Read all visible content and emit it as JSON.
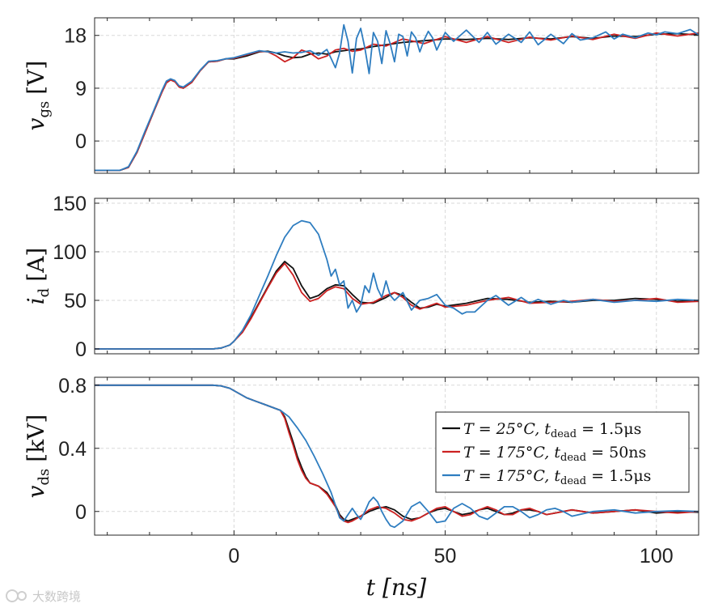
{
  "chart_data": [
    {
      "type": "line",
      "id": "vgs",
      "ylabel_var": "v",
      "ylabel_sub": "gs",
      "ylabel_unit": "[V]",
      "xlim": [
        -33,
        110
      ],
      "ylim": [
        -5.5,
        21
      ],
      "yticks": [
        0,
        9,
        18
      ],
      "ytick_labels": [
        "0",
        "9",
        "18"
      ],
      "series": [
        {
          "name": "T = 25°C, t_dead = 1.5μs",
          "color": "#111111",
          "x": [
            -33,
            -27,
            -25,
            -23,
            -21,
            -19,
            -17,
            -16,
            -15,
            -14,
            -13,
            -12,
            -10,
            -8,
            -6,
            -4,
            -2,
            0,
            3,
            6,
            8,
            10,
            12,
            14,
            16,
            18,
            20,
            22,
            24,
            26,
            28,
            30,
            33,
            36,
            40,
            45,
            50,
            55,
            60,
            65,
            70,
            75,
            80,
            85,
            90,
            95,
            100,
            105,
            110
          ],
          "y": [
            -5,
            -5,
            -4.5,
            -2,
            1.5,
            5,
            8.5,
            10,
            10.5,
            10.2,
            9.3,
            9,
            10,
            12,
            13.5,
            13.6,
            14,
            14,
            14.5,
            15.2,
            15.3,
            15,
            14.5,
            14.2,
            14.3,
            14.8,
            15,
            14.8,
            15.2,
            15.4,
            15.6,
            15.7,
            16.1,
            16.4,
            16.8,
            17.1,
            17.4,
            17.3,
            17.5,
            17.3,
            17.6,
            17.4,
            17.8,
            17.5,
            17.9,
            17.8,
            18.2,
            18.3,
            18.1
          ]
        },
        {
          "name": "T = 175°C, t_dead = 50ns",
          "color": "#cc2222",
          "x": [
            -33,
            -27,
            -25,
            -23,
            -21,
            -19,
            -17,
            -16,
            -15,
            -14,
            -13,
            -12,
            -10,
            -8,
            -6,
            -4,
            -2,
            0,
            3,
            6,
            8,
            10,
            12,
            14,
            16,
            18,
            20,
            22,
            24,
            26,
            28,
            30,
            33,
            36,
            40,
            45,
            50,
            55,
            60,
            65,
            70,
            75,
            80,
            85,
            90,
            95,
            100,
            105,
            110
          ],
          "y": [
            -5,
            -5,
            -4.5,
            -2,
            1.5,
            5,
            8.4,
            9.9,
            10.4,
            10.1,
            9.2,
            9,
            10,
            12,
            13.5,
            13.6,
            14,
            14.1,
            14.7,
            15.3,
            15.2,
            14.5,
            13.5,
            14.2,
            15.5,
            15,
            14,
            14.5,
            15.5,
            15.8,
            15.3,
            15.5,
            16.5,
            16.2,
            17.4,
            16.6,
            17.8,
            16.8,
            17.8,
            16.8,
            17.7,
            17.2,
            17.9,
            17.3,
            18.2,
            17.5,
            18.4,
            17.9,
            18.4
          ]
        },
        {
          "name": "T = 175°C, t_dead = 1.5μs",
          "color": "#2e7dc0",
          "x": [
            -33,
            -27,
            -25,
            -23,
            -21,
            -19,
            -17,
            -16,
            -15,
            -14,
            -13,
            -12,
            -10,
            -8,
            -6,
            -4,
            -2,
            0,
            3,
            6,
            8,
            10,
            12,
            14,
            16,
            18,
            20,
            22,
            24,
            25,
            26,
            27,
            28,
            29,
            30,
            31,
            32,
            33,
            34,
            35,
            36,
            37,
            38,
            39,
            40,
            41,
            42,
            43,
            44,
            45,
            46,
            47,
            48,
            50,
            52,
            55,
            58,
            60,
            62,
            65,
            68,
            70,
            72,
            75,
            78,
            80,
            82,
            85,
            88,
            90,
            92,
            95,
            98,
            100,
            102,
            105,
            108,
            110
          ],
          "y": [
            -5,
            -5,
            -4.4,
            -1.8,
            1.8,
            5.2,
            8.7,
            10.2,
            10.6,
            10.3,
            9.4,
            9.2,
            10.2,
            12.1,
            13.6,
            13.7,
            14,
            14.2,
            14.8,
            15.4,
            15.2,
            15,
            15.2,
            15,
            15.1,
            15.4,
            14.6,
            15.6,
            12.5,
            15,
            19.8,
            17,
            11.6,
            17.5,
            19.2,
            15.8,
            11.5,
            18.5,
            17,
            13.2,
            18.8,
            16.5,
            13.5,
            18.2,
            17.8,
            14.5,
            18.6,
            17.6,
            15.2,
            17.2,
            18.7,
            17.6,
            15.5,
            18.5,
            17,
            18.9,
            16.8,
            18.5,
            16.5,
            18.2,
            16.8,
            18.6,
            16.4,
            18.2,
            16.6,
            18.3,
            17.2,
            17.6,
            18.6,
            17.4,
            18.2,
            17.6,
            18.4,
            18.1,
            18.6,
            18.3,
            19,
            18.1
          ]
        }
      ]
    },
    {
      "type": "line",
      "id": "id",
      "ylabel_var": "i",
      "ylabel_sub": "d",
      "ylabel_unit": "[A]",
      "xlim": [
        -33,
        110
      ],
      "ylim": [
        -5,
        155
      ],
      "yticks": [
        0,
        50,
        100,
        150
      ],
      "ytick_labels": [
        "0",
        "50",
        "100",
        "150"
      ],
      "series": [
        {
          "name": "T = 25°C, t_dead = 1.5μs",
          "color": "#111111",
          "x": [
            -33,
            -5,
            -3,
            -1,
            0,
            2,
            4,
            6,
            8,
            10,
            12,
            14,
            16,
            18,
            20,
            22,
            24,
            26,
            28,
            30,
            33,
            36,
            38,
            40,
            42,
            44,
            46,
            48,
            50,
            55,
            60,
            65,
            70,
            75,
            80,
            85,
            90,
            95,
            100,
            105,
            110
          ],
          "y": [
            0,
            0,
            1,
            4,
            8,
            18,
            32,
            48,
            64,
            80,
            90,
            83,
            65,
            52,
            55,
            62,
            66,
            65,
            56,
            48,
            47,
            53,
            58,
            55,
            48,
            42,
            43,
            46,
            44,
            47,
            52,
            51,
            48,
            49,
            48,
            50,
            50,
            52,
            51,
            49,
            50
          ]
        },
        {
          "name": "T = 175°C, t_dead = 50ns",
          "color": "#cc2222",
          "x": [
            -33,
            -5,
            -3,
            -1,
            0,
            2,
            4,
            6,
            8,
            10,
            12,
            14,
            16,
            18,
            20,
            22,
            24,
            26,
            28,
            30,
            33,
            36,
            38,
            40,
            42,
            44,
            46,
            48,
            50,
            55,
            60,
            65,
            70,
            75,
            80,
            85,
            90,
            95,
            100,
            105,
            110
          ],
          "y": [
            0,
            0,
            1,
            4,
            8,
            17,
            31,
            47,
            63,
            78,
            88,
            76,
            58,
            49,
            52,
            60,
            64,
            62,
            52,
            46,
            48,
            55,
            58,
            53,
            45,
            41,
            44,
            47,
            43,
            45,
            50,
            53,
            47,
            48,
            49,
            51,
            49,
            50,
            52,
            48,
            49
          ]
        },
        {
          "name": "T = 175°C, t_dead = 1.5μs",
          "color": "#2e7dc0",
          "x": [
            -33,
            -5,
            -3,
            -1,
            0,
            2,
            4,
            6,
            8,
            10,
            12,
            14,
            16,
            18,
            20,
            22,
            23,
            24,
            25,
            26,
            27,
            28,
            29,
            30,
            31,
            32,
            33,
            34,
            35,
            36,
            37,
            38,
            40,
            42,
            44,
            46,
            48,
            50,
            52,
            54,
            55,
            57,
            60,
            62,
            65,
            68,
            70,
            72,
            75,
            78,
            80,
            85,
            90,
            95,
            100,
            105,
            110
          ],
          "y": [
            0,
            0,
            1,
            4,
            8,
            19,
            35,
            55,
            75,
            96,
            115,
            127,
            132,
            130,
            118,
            92,
            75,
            82,
            66,
            70,
            42,
            50,
            38,
            45,
            65,
            58,
            78,
            62,
            53,
            70,
            55,
            50,
            58,
            40,
            50,
            52,
            56,
            45,
            42,
            36,
            38,
            38,
            50,
            55,
            45,
            53,
            47,
            51,
            46,
            50,
            48,
            51,
            48,
            50,
            49,
            51,
            50
          ]
        }
      ]
    },
    {
      "type": "line",
      "id": "vds",
      "ylabel_var": "v",
      "ylabel_sub": "ds",
      "ylabel_unit": "[kV]",
      "xlabel": "t [ns]",
      "xlim": [
        -33,
        110
      ],
      "ylim": [
        -0.15,
        0.85
      ],
      "yticks": [
        0,
        0.4,
        0.8
      ],
      "ytick_labels": [
        "0",
        "0.4",
        "0.8"
      ],
      "xticks": [
        0,
        50,
        100
      ],
      "xtick_labels": [
        "0",
        "50",
        "100"
      ],
      "legend": {
        "position": "lower-right",
        "entries": [
          {
            "prefix": "T = 25°C, t",
            "sub": "dead",
            "suffix": " = 1.5μs",
            "color": "#111111"
          },
          {
            "prefix": "T = 175°C, t",
            "sub": "dead",
            "suffix": " = 50ns",
            "color": "#cc2222"
          },
          {
            "prefix": "T = 175°C, t",
            "sub": "dead",
            "suffix": " = 1.5μs",
            "color": "#2e7dc0"
          }
        ]
      },
      "series": [
        {
          "name": "T = 25°C, t_dead = 1.5μs",
          "color": "#111111",
          "x": [
            -33,
            -5,
            -3,
            -1,
            1,
            3,
            5,
            7,
            9,
            11,
            12,
            13,
            14,
            15,
            16,
            17,
            18,
            20,
            22,
            24,
            25,
            26,
            27,
            28,
            30,
            32,
            34,
            36,
            38,
            40,
            42,
            44,
            46,
            48,
            50,
            52,
            54,
            56,
            58,
            60,
            62,
            64,
            66,
            68,
            70,
            72,
            74,
            76,
            78,
            80,
            85,
            90,
            95,
            100,
            105,
            110
          ],
          "y": [
            0.8,
            0.8,
            0.795,
            0.78,
            0.75,
            0.72,
            0.7,
            0.68,
            0.66,
            0.64,
            0.6,
            0.52,
            0.44,
            0.35,
            0.28,
            0.22,
            0.18,
            0.16,
            0.12,
            0.04,
            -0.02,
            -0.05,
            -0.06,
            -0.05,
            -0.03,
            0.0,
            0.02,
            0.03,
            0.01,
            -0.03,
            -0.05,
            -0.04,
            -0.01,
            0.01,
            0.02,
            0.0,
            -0.02,
            -0.01,
            0.01,
            0.02,
            0.0,
            -0.02,
            -0.01,
            0.01,
            0.01,
            0.0,
            -0.02,
            -0.01,
            0.0,
            0.01,
            -0.01,
            0.0,
            0.01,
            -0.01,
            0.0,
            -0.005
          ]
        },
        {
          "name": "T = 175°C, t_dead = 50ns",
          "color": "#cc2222",
          "x": [
            -33,
            -5,
            -3,
            -1,
            1,
            3,
            5,
            7,
            9,
            11,
            12,
            13,
            14,
            15,
            16,
            17,
            18,
            20,
            22,
            24,
            25,
            26,
            27,
            28,
            30,
            32,
            34,
            36,
            38,
            40,
            42,
            44,
            46,
            48,
            50,
            52,
            54,
            56,
            58,
            60,
            62,
            64,
            66,
            68,
            70,
            72,
            74,
            76,
            78,
            80,
            85,
            90,
            95,
            100,
            105,
            110
          ],
          "y": [
            0.8,
            0.8,
            0.795,
            0.78,
            0.75,
            0.72,
            0.7,
            0.68,
            0.66,
            0.64,
            0.59,
            0.5,
            0.42,
            0.33,
            0.26,
            0.21,
            0.18,
            0.16,
            0.11,
            0.03,
            -0.03,
            -0.06,
            -0.07,
            -0.06,
            -0.03,
            0.01,
            0.03,
            0.02,
            -0.01,
            -0.05,
            -0.06,
            -0.04,
            -0.01,
            0.02,
            0.03,
            0.0,
            -0.03,
            -0.02,
            0.01,
            0.03,
            0.01,
            -0.02,
            -0.02,
            0.01,
            0.02,
            0.0,
            -0.02,
            -0.01,
            0.0,
            0.01,
            -0.01,
            0.0,
            0.01,
            0.0,
            -0.01,
            0.0
          ]
        },
        {
          "name": "T = 175°C, t_dead = 1.5μs",
          "color": "#2e7dc0",
          "x": [
            -33,
            -5,
            -3,
            -1,
            1,
            3,
            5,
            7,
            9,
            11,
            13,
            15,
            17,
            19,
            21,
            23,
            24,
            25,
            26,
            27,
            28,
            29,
            30,
            31,
            32,
            33,
            34,
            35,
            36,
            37,
            38,
            40,
            42,
            44,
            46,
            48,
            50,
            52,
            54,
            56,
            58,
            60,
            62,
            64,
            66,
            68,
            70,
            72,
            74,
            76,
            78,
            80,
            85,
            90,
            95,
            100,
            105,
            110
          ],
          "y": [
            0.8,
            0.8,
            0.795,
            0.78,
            0.75,
            0.72,
            0.7,
            0.68,
            0.66,
            0.64,
            0.6,
            0.53,
            0.45,
            0.35,
            0.24,
            0.12,
            0.04,
            -0.04,
            -0.06,
            -0.02,
            0.02,
            -0.02,
            -0.05,
            0.0,
            0.06,
            0.09,
            0.06,
            0.0,
            -0.05,
            -0.09,
            -0.1,
            -0.06,
            0.03,
            0.06,
            0.0,
            -0.07,
            -0.06,
            0.02,
            0.05,
            0.02,
            -0.03,
            -0.05,
            -0.01,
            0.03,
            0.03,
            0.0,
            -0.04,
            -0.02,
            0.01,
            0.02,
            0.0,
            -0.03,
            0.0,
            0.01,
            -0.01,
            0.0,
            0.005,
            0.0
          ]
        }
      ]
    }
  ],
  "watermark": "大数跨境",
  "colors": {
    "axis": "#262626",
    "grid": "#d9d9d9"
  }
}
